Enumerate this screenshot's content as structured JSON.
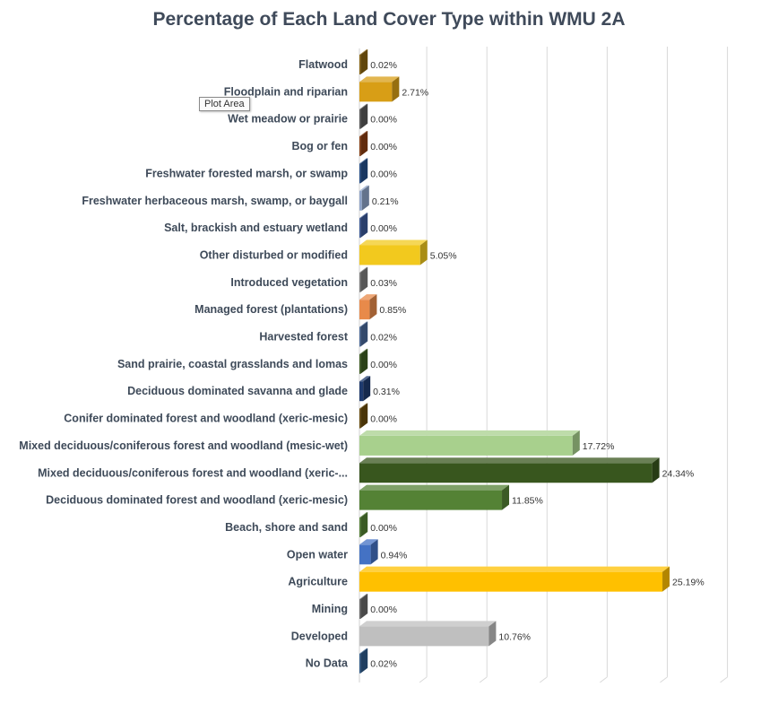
{
  "chart_data": {
    "type": "bar",
    "orientation": "horizontal",
    "title": "Percentage of Each Land Cover Type within WMU 2A",
    "xlabel": "",
    "ylabel": "",
    "xlim": [
      0,
      30
    ],
    "grid": true,
    "tooltip": "Plot Area",
    "categories": [
      "Flatwood",
      "Floodplain and riparian",
      "Wet meadow or prairie",
      "Bog or fen",
      "Freshwater forested  marsh, or swamp",
      "Freshwater herbaceous marsh, swamp, or baygall",
      "Salt, brackish and estuary wetland",
      "Other disturbed or modified",
      "Introduced vegetation",
      "Managed forest (plantations)",
      "Harvested forest",
      "Sand prairie, coastal grasslands and lomas",
      "Deciduous dominated savanna and glade",
      "Conifer dominated forest and woodland (xeric-mesic)",
      "Mixed deciduous/coniferous forest and woodland (mesic-wet)",
      "Mixed deciduous/coniferous forest and woodland  (xeric-...",
      "Deciduous dominated forest and woodland (xeric-mesic)",
      "Beach, shore and sand",
      "Open water",
      "Agriculture",
      "Mining",
      "Developed",
      "No Data"
    ],
    "values": [
      0.02,
      2.71,
      0.0,
      0.0,
      0.0,
      0.21,
      0.0,
      5.05,
      0.03,
      0.85,
      0.02,
      0.0,
      0.31,
      0.0,
      17.72,
      24.34,
      11.85,
      0.0,
      0.94,
      25.19,
      0.0,
      10.76,
      0.02
    ],
    "value_labels": [
      "0.02%",
      "2.71%",
      "0.00%",
      "0.00%",
      "0.00%",
      "0.21%",
      "0.00%",
      "5.05%",
      "0.03%",
      "0.85%",
      "0.02%",
      "0.00%",
      "0.31%",
      "0.00%",
      "17.72%",
      "24.34%",
      "11.85%",
      "0.00%",
      "0.94%",
      "25.19%",
      "0.00%",
      "10.76%",
      "0.02%"
    ],
    "colors": [
      "#8a6410",
      "#d89e16",
      "#5a5a5a",
      "#8a3e12",
      "#244e8a",
      "#8fa4c8",
      "#3c5a9a",
      "#f2c91e",
      "#7d7d7d",
      "#e88a4a",
      "#4a6a9a",
      "#3e5e22",
      "#1e3a6e",
      "#6a4c0c",
      "#a8d08d",
      "#38561e",
      "#548235",
      "#548235",
      "#4472c4",
      "#ffc000",
      "#6a6a6a",
      "#bfbfbf",
      "#2e5a8a"
    ]
  }
}
